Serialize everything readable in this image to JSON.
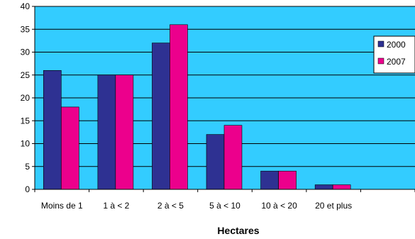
{
  "chart_data": {
    "type": "bar",
    "categories": [
      "Moins de 1",
      "1 à < 2",
      "2 à < 5",
      "5 à < 10",
      "10 à < 20",
      "20 et plus"
    ],
    "series": [
      {
        "name": "2000",
        "color": "#2E3192",
        "values": [
          26,
          25,
          32,
          12,
          4,
          1
        ]
      },
      {
        "name": "2007",
        "color": "#EC008C",
        "values": [
          18,
          25,
          36,
          14,
          4,
          1
        ]
      }
    ],
    "title": "",
    "xlabel": "Hectares",
    "ylabel": "",
    "ylim": [
      0,
      40
    ],
    "yticks": [
      0,
      5,
      10,
      15,
      20,
      25,
      30,
      35,
      40
    ],
    "grid": true,
    "legend": "right",
    "plot_background": "#33CCFF",
    "gridline_color": "#000000"
  }
}
